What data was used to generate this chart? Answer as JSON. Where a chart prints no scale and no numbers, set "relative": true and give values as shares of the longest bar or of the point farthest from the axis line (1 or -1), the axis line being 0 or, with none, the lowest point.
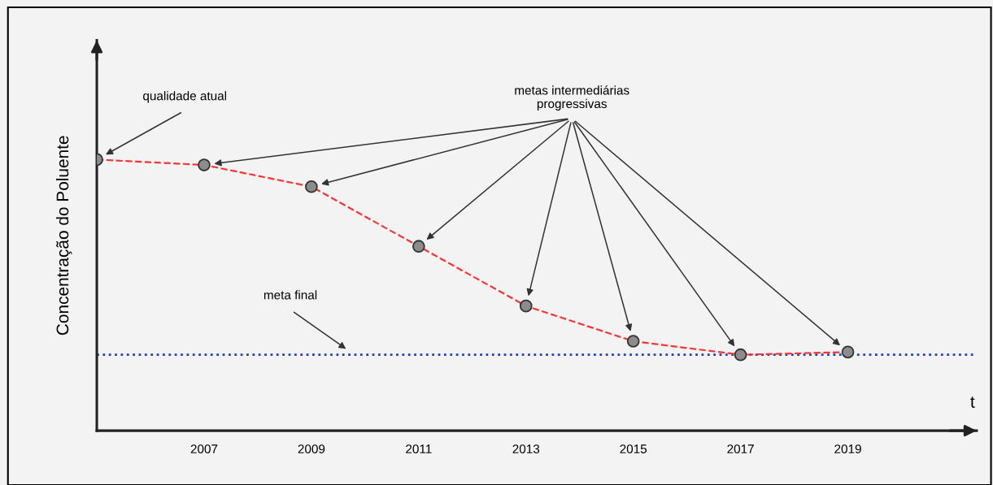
{
  "chart_data": {
    "type": "line",
    "relative": true,
    "xlabel": "t",
    "ylabel": "Concentração do Poluente",
    "x": [
      2005,
      2007,
      2009,
      2011,
      2013,
      2015,
      2017,
      2019
    ],
    "series": [
      {
        "color": "#ff3333",
        "values": [
          1.0,
          0.98,
          0.9,
          0.68,
          0.46,
          0.33,
          0.28,
          0.29
        ]
      }
    ],
    "marker": "circle",
    "line_style": "dashed",
    "xlim": [
      2005,
      2021.4
    ],
    "xticks": [
      2007,
      2009,
      2011,
      2013,
      2015,
      2017,
      2019
    ],
    "ref_lines": [
      {
        "axis": "y",
        "value": 0.28,
        "color": "#1f3fbf",
        "line_style": "dotted"
      }
    ],
    "annotations": [
      "qualidade atual",
      "metas intermediárias\nprogressivas",
      "meta final"
    ],
    "grid": false,
    "legend": false
  }
}
